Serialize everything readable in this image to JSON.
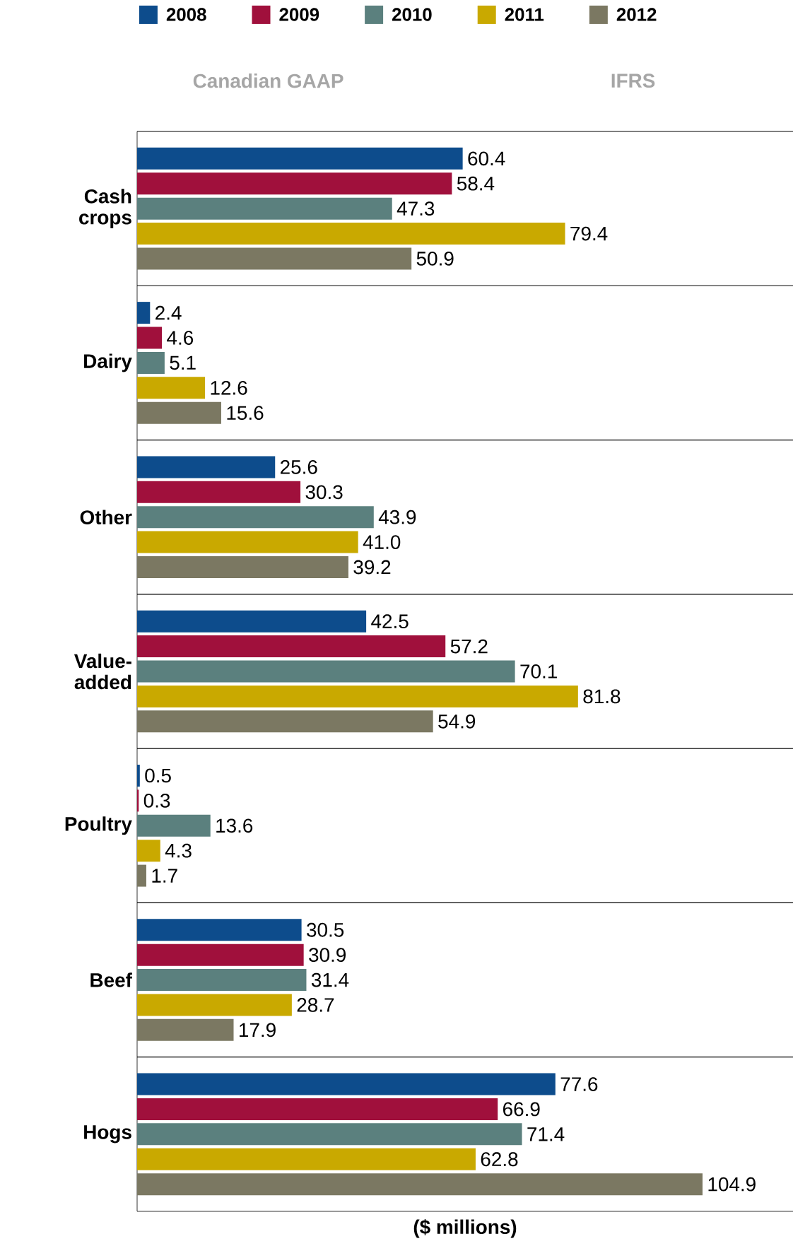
{
  "chart_data": {
    "type": "bar",
    "orientation": "horizontal",
    "xlabel": "($ millions)",
    "categories": [
      "Cash crops",
      "Dairy",
      "Other",
      "Value-added",
      "Poultry",
      "Beef",
      "Hogs"
    ],
    "series": [
      {
        "name": "2008",
        "color": "#0d4c8c",
        "values": [
          60.4,
          2.4,
          25.6,
          42.5,
          0.5,
          30.5,
          77.6
        ],
        "value_labels": [
          "60.4",
          "2.4",
          "25.6",
          "42.5",
          "0.5",
          "30.5",
          "77.6"
        ]
      },
      {
        "name": "2009",
        "color": "#a0103c",
        "values": [
          58.4,
          4.6,
          30.3,
          57.2,
          0.3,
          30.9,
          66.9
        ],
        "value_labels": [
          "58.4",
          "4.6",
          "30.3",
          "57.2",
          "0.3",
          "30.9",
          "66.9"
        ]
      },
      {
        "name": "2010",
        "color": "#5b807e",
        "values": [
          47.3,
          5.1,
          43.9,
          70.1,
          13.6,
          31.4,
          71.4
        ],
        "value_labels": [
          "47.3",
          "5.1",
          "43.9",
          "70.1",
          "13.6",
          "31.4",
          "71.4"
        ]
      },
      {
        "name": "2011",
        "color": "#c9a900",
        "values": [
          79.4,
          12.6,
          41.0,
          81.8,
          4.3,
          28.7,
          62.8
        ],
        "value_labels": [
          "79.4",
          "12.6",
          "41.0",
          "81.8",
          "4.3",
          "28.7",
          "62.8"
        ]
      },
      {
        "name": "2012",
        "color": "#7b7862",
        "values": [
          50.9,
          15.6,
          39.2,
          54.9,
          1.7,
          17.9,
          104.9
        ],
        "value_labels": [
          "50.9",
          "15.6",
          "39.2",
          "54.9",
          "1.7",
          "17.9",
          "104.9"
        ]
      }
    ],
    "annotations": [
      "Canadian GAAP",
      "IFRS"
    ],
    "legend": "top"
  }
}
